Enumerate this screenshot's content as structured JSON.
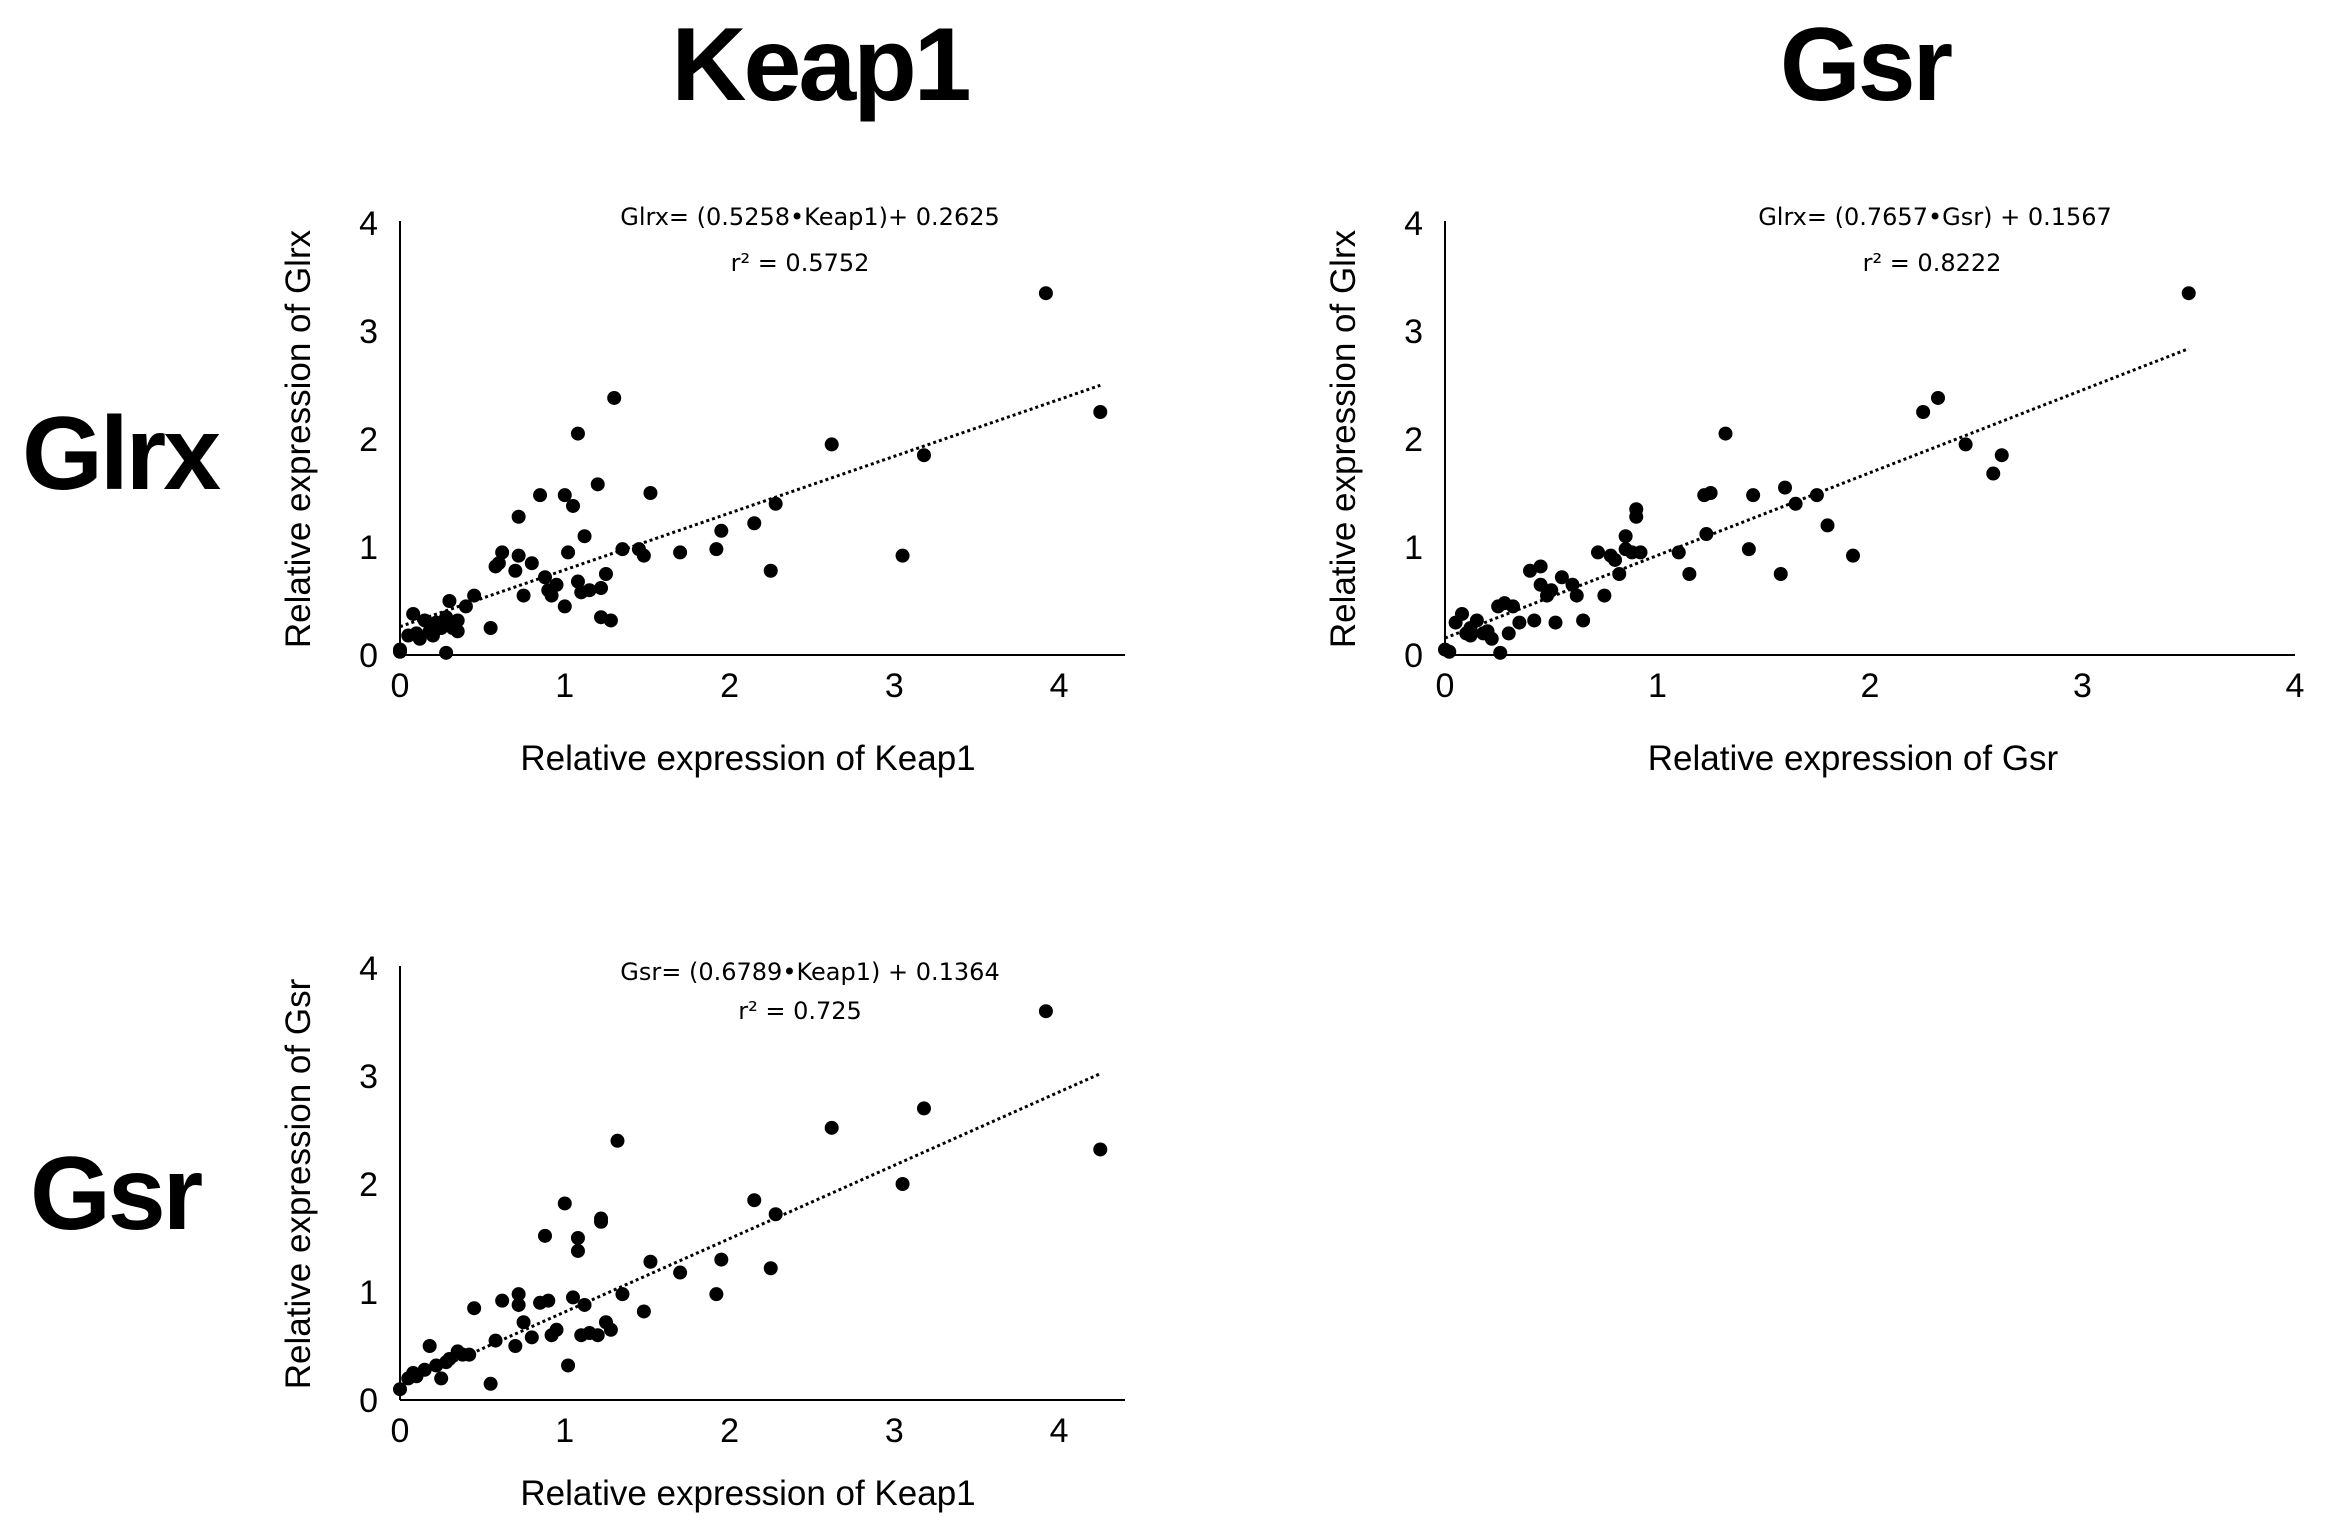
{
  "column_titles": [
    "Keap1",
    "Gsr"
  ],
  "row_titles": [
    "Glrx",
    "Gsr"
  ],
  "colors": {
    "points": "#000000",
    "axis": "#000000",
    "trend": "#000000"
  },
  "chart_data": [
    {
      "type": "scatter",
      "title": "",
      "xlabel": "Relative expression of Keap1",
      "ylabel": "Relative expression of Glrx",
      "xlim": [
        0,
        4.4
      ],
      "ylim": [
        0,
        4
      ],
      "xticks": [
        0,
        1,
        2,
        3,
        4
      ],
      "yticks": [
        0,
        1,
        2,
        3,
        4
      ],
      "equation": "Glrx= (0.5258•Keap1)+ 0.2625",
      "r2_label": "r² = 0.5752",
      "trendline": {
        "slope": 0.5258,
        "intercept": 0.2625,
        "x_range": [
          0,
          4.25
        ]
      },
      "x": [
        0.0,
        0.0,
        0.05,
        0.08,
        0.1,
        0.12,
        0.15,
        0.18,
        0.2,
        0.22,
        0.25,
        0.28,
        0.28,
        0.3,
        0.32,
        0.35,
        0.35,
        0.4,
        0.45,
        0.55,
        0.58,
        0.6,
        0.62,
        0.7,
        0.72,
        0.72,
        0.75,
        0.8,
        0.85,
        0.88,
        0.9,
        0.92,
        0.95,
        1.0,
        1.0,
        1.02,
        1.05,
        1.08,
        1.08,
        1.1,
        1.12,
        1.15,
        1.2,
        1.22,
        1.22,
        1.25,
        1.28,
        1.3,
        1.35,
        1.45,
        1.48,
        1.52,
        1.7,
        1.92,
        1.95,
        2.15,
        2.25,
        2.28,
        2.62,
        3.05,
        3.18,
        3.92,
        4.25
      ],
      "y": [
        0.05,
        0.03,
        0.18,
        0.38,
        0.2,
        0.15,
        0.32,
        0.22,
        0.18,
        0.3,
        0.25,
        0.02,
        0.35,
        0.5,
        0.25,
        0.22,
        0.32,
        0.45,
        0.55,
        0.25,
        0.82,
        0.85,
        0.95,
        0.78,
        0.92,
        1.28,
        0.55,
        0.85,
        1.48,
        0.72,
        0.6,
        0.55,
        0.65,
        1.48,
        0.45,
        0.95,
        1.38,
        2.05,
        0.68,
        0.58,
        1.1,
        0.6,
        1.58,
        0.35,
        0.62,
        0.75,
        0.32,
        2.38,
        0.98,
        0.98,
        0.92,
        1.5,
        0.95,
        0.98,
        1.15,
        1.22,
        0.78,
        1.4,
        1.95,
        0.92,
        1.85,
        3.35,
        2.25
      ]
    },
    {
      "type": "scatter",
      "title": "",
      "xlabel": "Relative expression of Gsr",
      "ylabel": "Relative expression of Glrx",
      "xlim": [
        0,
        4
      ],
      "ylim": [
        0,
        4
      ],
      "xticks": [
        0,
        1,
        2,
        3,
        4
      ],
      "yticks": [
        0,
        1,
        2,
        3,
        4
      ],
      "equation": "Glrx= (0.7657•Gsr) + 0.1567",
      "r2_label": "r² = 0.8222",
      "trendline": {
        "slope": 0.7657,
        "intercept": 0.1567,
        "x_range": [
          0,
          3.5
        ]
      },
      "x": [
        0.0,
        0.02,
        0.05,
        0.08,
        0.1,
        0.12,
        0.12,
        0.15,
        0.18,
        0.2,
        0.22,
        0.25,
        0.26,
        0.28,
        0.3,
        0.32,
        0.35,
        0.4,
        0.42,
        0.45,
        0.45,
        0.48,
        0.5,
        0.52,
        0.55,
        0.6,
        0.62,
        0.65,
        0.72,
        0.75,
        0.78,
        0.8,
        0.82,
        0.85,
        0.85,
        0.88,
        0.9,
        0.9,
        0.92,
        1.1,
        1.15,
        1.22,
        1.23,
        1.25,
        1.32,
        1.43,
        1.45,
        1.58,
        1.6,
        1.65,
        1.75,
        1.8,
        1.92,
        2.25,
        2.32,
        2.45,
        2.58,
        2.62,
        3.5
      ],
      "y": [
        0.05,
        0.03,
        0.3,
        0.38,
        0.2,
        0.25,
        0.18,
        0.32,
        0.2,
        0.22,
        0.15,
        0.45,
        0.02,
        0.48,
        0.2,
        0.45,
        0.3,
        0.78,
        0.32,
        0.82,
        0.65,
        0.55,
        0.6,
        0.3,
        0.72,
        0.65,
        0.55,
        0.32,
        0.95,
        0.55,
        0.92,
        0.88,
        0.75,
        0.98,
        1.1,
        0.95,
        1.35,
        1.28,
        0.95,
        0.95,
        0.75,
        1.48,
        1.12,
        1.5,
        2.05,
        0.98,
        1.48,
        0.75,
        1.55,
        1.4,
        1.48,
        1.2,
        0.92,
        2.25,
        2.38,
        1.95,
        1.68,
        1.85,
        3.35
      ]
    },
    {
      "type": "scatter",
      "title": "",
      "xlabel": "Relative expression of Keap1",
      "ylabel": "Relative expression of Gsr",
      "xlim": [
        0,
        4.4
      ],
      "ylim": [
        0,
        4
      ],
      "xticks": [
        0,
        1,
        2,
        3,
        4
      ],
      "yticks": [
        0,
        1,
        2,
        3,
        4
      ],
      "equation": "Gsr= (0.6789•Keap1) + 0.1364",
      "r2_label": "r² = 0.725",
      "trendline": {
        "slope": 0.6789,
        "intercept": 0.1364,
        "x_range": [
          0,
          4.25
        ]
      },
      "x": [
        0.0,
        0.05,
        0.08,
        0.1,
        0.15,
        0.18,
        0.22,
        0.25,
        0.28,
        0.3,
        0.35,
        0.38,
        0.42,
        0.45,
        0.55,
        0.58,
        0.62,
        0.7,
        0.72,
        0.72,
        0.75,
        0.8,
        0.85,
        0.88,
        0.9,
        0.92,
        0.95,
        1.0,
        1.02,
        1.05,
        1.08,
        1.08,
        1.1,
        1.12,
        1.15,
        1.2,
        1.22,
        1.22,
        1.25,
        1.28,
        1.32,
        1.35,
        1.48,
        1.52,
        1.7,
        1.92,
        1.95,
        2.15,
        2.25,
        2.28,
        2.62,
        3.05,
        3.18,
        3.92,
        4.25
      ],
      "y": [
        0.1,
        0.2,
        0.25,
        0.22,
        0.28,
        0.5,
        0.32,
        0.2,
        0.35,
        0.38,
        0.45,
        0.42,
        0.42,
        0.85,
        0.15,
        0.55,
        0.92,
        0.5,
        0.98,
        0.88,
        0.72,
        0.58,
        0.9,
        1.52,
        0.92,
        0.6,
        0.65,
        1.82,
        0.32,
        0.95,
        1.38,
        1.5,
        0.6,
        0.88,
        0.62,
        0.6,
        1.65,
        1.68,
        0.72,
        0.65,
        2.4,
        0.98,
        0.82,
        1.28,
        1.18,
        0.98,
        1.3,
        1.85,
        1.22,
        1.72,
        2.52,
        2.0,
        2.7,
        3.6,
        2.32
      ]
    }
  ]
}
